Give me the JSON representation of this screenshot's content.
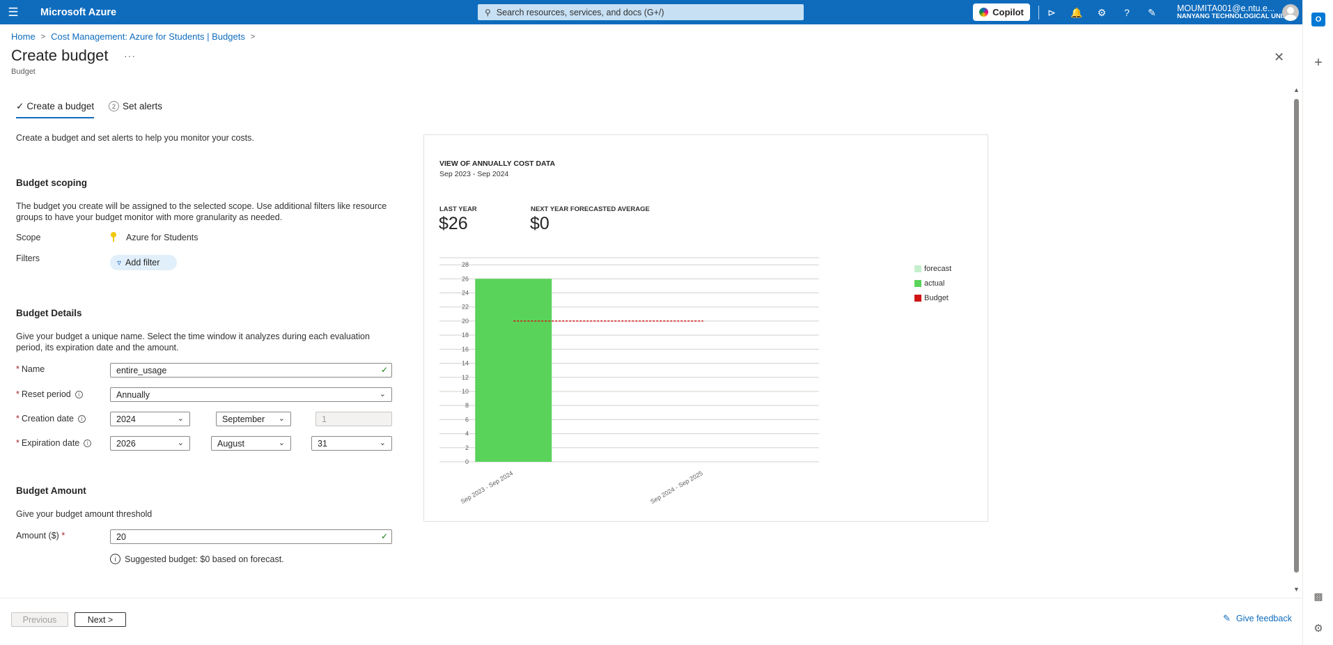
{
  "topbar": {
    "brand": "Microsoft Azure",
    "search_placeholder": "Search resources, services, and docs (G+/)",
    "copilot_label": "Copilot",
    "account_user": "MOUMITA001@e.ntu.e...",
    "account_org": "NANYANG TECHNOLOGICAL UNI..."
  },
  "breadcrumb": {
    "home": "Home",
    "parent": "Cost Management: Azure for Students | Budgets"
  },
  "page": {
    "title": "Create budget",
    "more": "···",
    "subtitle": "Budget"
  },
  "tabs": [
    {
      "label": "Create a budget",
      "icon": "checkmark-icon"
    },
    {
      "label": "Set alerts",
      "number": "2"
    }
  ],
  "intro": "Create a budget and set alerts to help you monitor your costs.",
  "scoping": {
    "heading": "Budget scoping",
    "description": "The budget you create will be assigned to the selected scope. Use additional filters like resource groups to have your budget monitor with more granularity as needed.",
    "scope_label": "Scope",
    "scope_value": "Azure for Students",
    "filters_label": "Filters",
    "add_filter": "Add filter"
  },
  "details": {
    "heading": "Budget Details",
    "description": "Give your budget a unique name. Select the time window it analyzes during each evaluation period, its expiration date and the amount.",
    "name_label": "Name",
    "name_value": "entire_usage",
    "reset_label": "Reset period",
    "reset_value": "Annually",
    "creation_label": "Creation date",
    "creation_year": "2024",
    "creation_month": "September",
    "creation_day": "1",
    "expiration_label": "Expiration date",
    "expiration_year": "2026",
    "expiration_month": "August",
    "expiration_day": "31"
  },
  "amount": {
    "heading": "Budget Amount",
    "description": "Give your budget amount threshold",
    "label": "Amount ($)",
    "value": "20",
    "suggestion": "Suggested budget: $0 based on forecast."
  },
  "footer": {
    "previous": "Previous",
    "next": "Next >",
    "feedback": "Give feedback"
  },
  "chart_card": {
    "title": "VIEW OF ANNUALLY COST DATA",
    "range": "Sep 2023 - Sep 2024",
    "last_year_label": "LAST YEAR",
    "last_year_value": "$26",
    "forecast_label": "NEXT YEAR FORECASTED AVERAGE",
    "forecast_value": "$0"
  },
  "chart_data": {
    "type": "bar",
    "categories": [
      "Sep 2023 - Sep 2024",
      "Sep 2024 - Sep 2025"
    ],
    "series": [
      {
        "name": "forecast",
        "values": [
          0,
          0
        ],
        "color": "#c6efce"
      },
      {
        "name": "actual",
        "values": [
          26,
          0
        ],
        "color": "#5ad35a"
      }
    ],
    "budget": {
      "name": "Budget",
      "value": 20,
      "color": "#d01414"
    },
    "yticks": [
      0,
      2,
      4,
      6,
      8,
      10,
      12,
      14,
      16,
      18,
      20,
      22,
      24,
      26,
      28
    ],
    "ylim": [
      0,
      29
    ],
    "grid": true,
    "legend": "right"
  },
  "colors": {
    "accent": "#0f6cbd",
    "required": "#a4262c",
    "valid": "#107c10"
  }
}
